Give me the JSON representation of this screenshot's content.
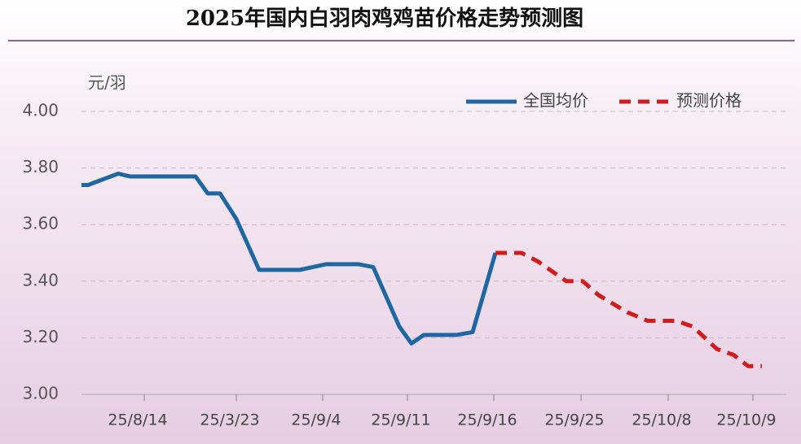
{
  "chart_data": {
    "type": "line",
    "title": "2025年国内白羽肉鸡鸡苗价格走势预测图",
    "y_label": "元/羽",
    "xlim": [
      0,
      840
    ],
    "ylim": [
      3.0,
      4.0
    ],
    "xticks": [
      {
        "value": 77,
        "label": "25/8/14"
      },
      {
        "value": 190,
        "label": "25/3/23"
      },
      {
        "value": 296,
        "label": "25/9/4"
      },
      {
        "value": 400,
        "label": "25/9/11"
      },
      {
        "value": 506,
        "label": "25/9/16"
      },
      {
        "value": 613,
        "label": "25/9/25"
      },
      {
        "value": 720,
        "label": "25/10/8"
      },
      {
        "value": 824,
        "label": "25/10/9"
      }
    ],
    "yticks": [
      {
        "value": 3.0,
        "label": "3.00"
      },
      {
        "value": 3.2,
        "label": "3.20"
      },
      {
        "value": 3.4,
        "label": "3.40"
      },
      {
        "value": 3.6,
        "label": "3.60"
      },
      {
        "value": 3.8,
        "label": "3.80"
      },
      {
        "value": 4.0,
        "label": "4.00"
      }
    ],
    "grid": true,
    "legend": "top-right",
    "series": [
      {
        "name": "全国均价",
        "color": "#1f67a0",
        "dash": false,
        "x": [
          0,
          8,
          45,
          60,
          140,
          155,
          170,
          190,
          218,
          268,
          300,
          340,
          358,
          390,
          405,
          420,
          460,
          480,
          508
        ],
        "values": [
          3.74,
          3.74,
          3.78,
          3.77,
          3.77,
          3.71,
          3.71,
          3.62,
          3.44,
          3.44,
          3.46,
          3.46,
          3.45,
          3.24,
          3.18,
          3.21,
          3.21,
          3.22,
          3.5
        ]
      },
      {
        "name": "预测价格",
        "color": "#d01c1c",
        "dash": true,
        "x": [
          508,
          540,
          560,
          595,
          615,
          635,
          670,
          695,
          730,
          750,
          780,
          800,
          818,
          835
        ],
        "values": [
          3.5,
          3.5,
          3.47,
          3.4,
          3.4,
          3.35,
          3.29,
          3.26,
          3.26,
          3.24,
          3.16,
          3.14,
          3.1,
          3.1
        ]
      }
    ]
  }
}
